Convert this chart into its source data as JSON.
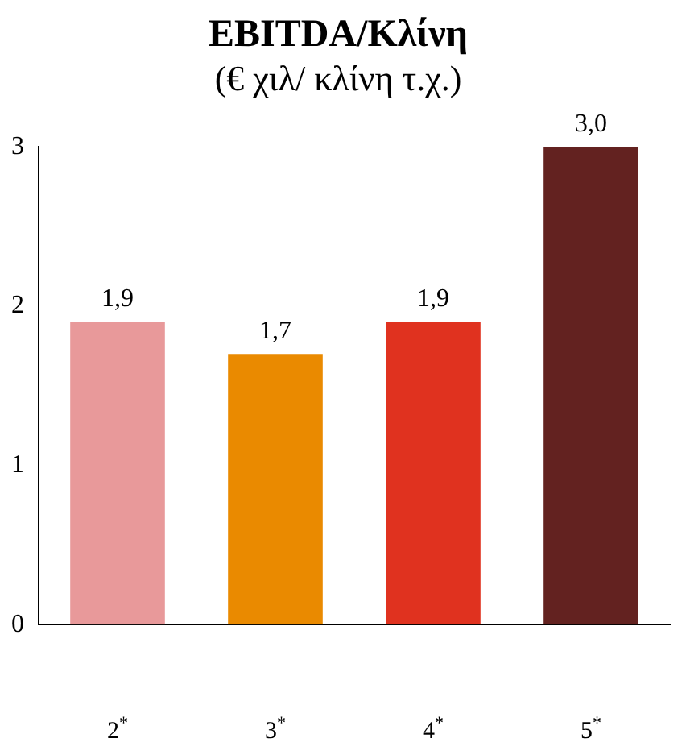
{
  "chart_data": {
    "type": "bar",
    "title": "EBITDA/Κλίνη",
    "subtitle": "(€ χιλ/ κλίνη τ.χ.)",
    "categories": [
      "2$^{*}$",
      "3$^{*}$",
      "4$^{*}$",
      "5$^{*}$"
    ],
    "values": [
      1.9,
      1.7,
      1.9,
      3.0
    ],
    "colors": [
      "#e8999a",
      "#ea8a00",
      "#e0321f",
      "#632220"
    ],
    "value_labels": [
      "1,9",
      "1,7",
      "1,9",
      "3,0"
    ],
    "ylim": [
      0,
      3
    ],
    "yticks": [
      0,
      1,
      2,
      3
    ],
    "grid": false,
    "legend": false
  }
}
